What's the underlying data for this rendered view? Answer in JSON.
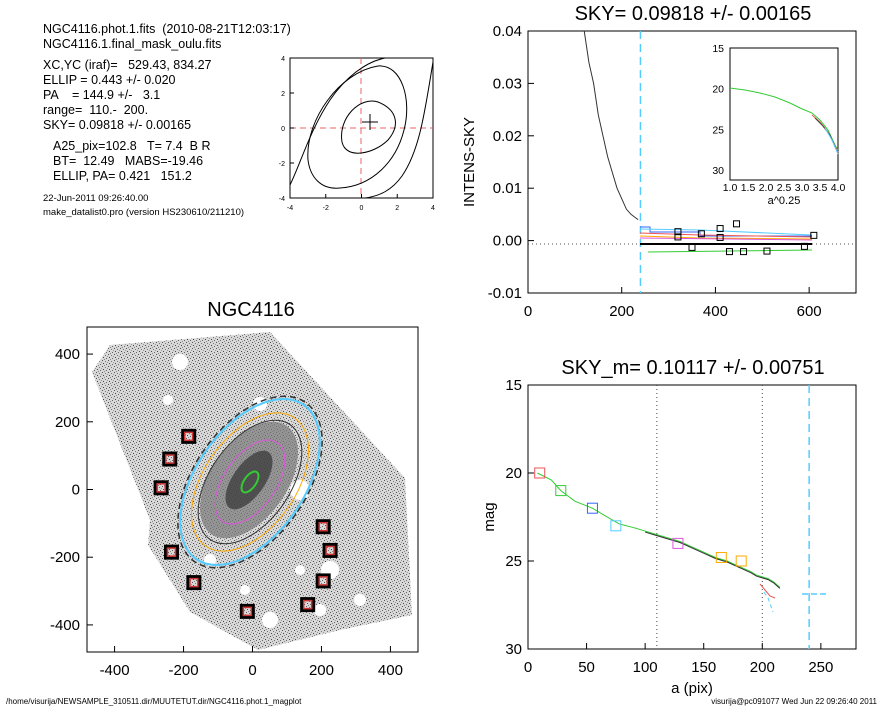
{
  "info": {
    "line1": "NGC4116.phot.1.fits  (2010-08-21T12:03:17)",
    "line2": "NGC4116.1.final_mask_oulu.fits",
    "line3": "XC,YC (iraf)=   529.43, 834.27",
    "line4": "ELLIP = 0.443 +/- 0.020",
    "line5": "PA    = 144.9 +/-   3.1",
    "line6": "range=  110.-  200.",
    "line7": "SKY= 0.09818 +/- 0.00165",
    "line8": "A25_pix=102.8   T= 7.4  B R",
    "line9": "BT=  12.49   MABS=-19.46",
    "line10": "ELLIP, PA= 0.421   151.2",
    "date": "22-Jun-2011 09:26:40.00",
    "program": "make_datalist0.pro (version HS230610/211210)"
  },
  "footer": {
    "left": "/home/visurija/NEWSAMPLE_310511.dir/MUUTETUT.dir/NGC4116.phot.1_magplot",
    "right": "visurija@pc091077  Wed Jun 22 09:26:40 2011"
  },
  "chart_data": [
    {
      "type": "line",
      "id": "contour-inset",
      "xticks": [
        "-4",
        "-2",
        "0",
        "2",
        "4"
      ],
      "yticks": [
        "4",
        "2",
        "0",
        "-2",
        "-4"
      ],
      "xlim": [
        -4,
        4
      ],
      "ylim": [
        -4,
        4
      ]
    },
    {
      "type": "line",
      "id": "sky-profile",
      "title": "SKY= 0.09818 +/- 0.00165",
      "ylabel": "INTENS-SKY",
      "xlim": [
        0,
        700
      ],
      "ylim": [
        -0.01,
        0.04
      ],
      "xticks": [
        "0",
        "200",
        "400",
        "600"
      ],
      "yticks": [
        "0.04",
        "0.03",
        "0.02",
        "0.01",
        "0.00",
        "-0.01"
      ],
      "sky_marker_x": 240,
      "profile": [
        [
          120,
          0.04
        ],
        [
          130,
          0.034
        ],
        [
          140,
          0.03
        ],
        [
          150,
          0.024
        ],
        [
          160,
          0.02
        ],
        [
          170,
          0.016
        ],
        [
          180,
          0.013
        ],
        [
          190,
          0.01
        ],
        [
          200,
          0.008
        ],
        [
          210,
          0.006
        ],
        [
          220,
          0.005
        ],
        [
          235,
          0.004
        ]
      ],
      "points": [
        [
          320,
          0.0017
        ],
        [
          320,
          0.0007
        ],
        [
          350,
          -0.0013
        ],
        [
          370,
          0.0013
        ],
        [
          410,
          0.0023
        ],
        [
          410,
          0.0006
        ],
        [
          430,
          -0.0021
        ],
        [
          445,
          0.0032
        ],
        [
          460,
          -0.0021
        ],
        [
          510,
          -0.002
        ],
        [
          590,
          -0.0011
        ],
        [
          610,
          0.001
        ]
      ],
      "inset": {
        "xlabel": "a^0.25",
        "xticks": [
          "1.0",
          "1.5",
          "2.0",
          "2.5",
          "3.0",
          "3.5",
          "4.0"
        ],
        "yticks": [
          "15",
          "20",
          "25",
          "30"
        ],
        "xlim": [
          1.0,
          4.0
        ],
        "ylim": [
          15,
          30
        ]
      }
    },
    {
      "type": "scatter",
      "id": "galaxy-image",
      "title": "NGC4116",
      "xlim": [
        -480,
        480
      ],
      "ylim": [
        -480,
        480
      ],
      "xticks": [
        "-400",
        "-200",
        "0",
        "200",
        "400"
      ],
      "yticks": [
        "400",
        "200",
        "0",
        "-200",
        "-400"
      ],
      "mask_squares": [
        [
          -185,
          157
        ],
        [
          -240,
          90
        ],
        [
          -265,
          5
        ],
        [
          -235,
          -185
        ],
        [
          -170,
          -275
        ],
        [
          -15,
          -360
        ],
        [
          205,
          -110
        ],
        [
          225,
          -180
        ],
        [
          205,
          -270
        ],
        [
          160,
          -340
        ]
      ]
    },
    {
      "type": "line",
      "id": "mag-profile",
      "title": "SKY_m=  0.10117 +/- 0.00751",
      "xlabel": "a (pix)",
      "ylabel": "mag",
      "xlim": [
        0,
        280
      ],
      "ylim": [
        15,
        30
      ],
      "xticks": [
        "0",
        "50",
        "100",
        "150",
        "200",
        "250"
      ],
      "yticks": [
        "15",
        "20",
        "25",
        "30"
      ],
      "vlines_dotted": [
        110,
        200
      ],
      "vline_dashed": 240,
      "profile": [
        [
          8,
          20.0
        ],
        [
          20,
          20.4
        ],
        [
          28,
          21.0
        ],
        [
          40,
          21.6
        ],
        [
          55,
          22.0
        ],
        [
          65,
          22.4
        ],
        [
          78,
          22.9
        ],
        [
          90,
          23.1
        ],
        [
          100,
          23.3
        ],
        [
          110,
          23.5
        ],
        [
          120,
          23.7
        ],
        [
          130,
          23.9
        ],
        [
          140,
          24.2
        ],
        [
          150,
          24.5
        ],
        [
          160,
          24.8
        ],
        [
          170,
          25.0
        ],
        [
          180,
          25.3
        ],
        [
          190,
          25.6
        ],
        [
          195,
          25.8
        ],
        [
          200,
          25.9
        ],
        [
          205,
          26.0
        ],
        [
          210,
          26.2
        ],
        [
          215,
          26.5
        ]
      ],
      "squares": [
        [
          10,
          20.0
        ],
        [
          28,
          21.0
        ],
        [
          55,
          22.0
        ],
        [
          75,
          23.0
        ],
        [
          128,
          24.0
        ],
        [
          165,
          24.8
        ],
        [
          182,
          25.0
        ]
      ]
    }
  ]
}
